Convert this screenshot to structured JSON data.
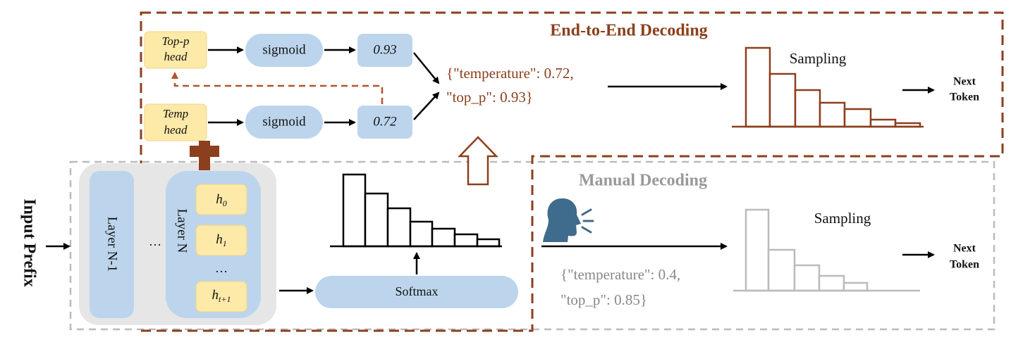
{
  "end_to_end": {
    "title": "End-to-End Decoding",
    "heads": [
      {
        "label": [
          "Top-p",
          "head"
        ],
        "activation": "sigmoid",
        "output": "0.93"
      },
      {
        "label": [
          "Temp",
          "head"
        ],
        "activation": "sigmoid",
        "output": "0.72"
      }
    ],
    "params": [
      "{\"temperature\": 0.72,",
      "\"top_p\": 0.93}"
    ],
    "sampling": "Sampling",
    "next_token": [
      "Next",
      "Token"
    ]
  },
  "model": {
    "input": "Input Prefix",
    "layer_prev": "Layer N-1",
    "layer_ellipsis": "…",
    "layer": "Layer N",
    "hidden": [
      {
        "base": "h",
        "sub": "0"
      },
      {
        "base": "h",
        "sub": "1"
      },
      {
        "base": "h",
        "sub": "t+1"
      }
    ],
    "hidden_ellipsis": "…",
    "softmax": "Softmax"
  },
  "manual": {
    "title": "Manual Decoding",
    "params": [
      "{\"temperature\": 0.4,",
      "\"top_p\": 0.85}"
    ],
    "sampling": "Sampling",
    "next_token": [
      "Next",
      "Token"
    ]
  }
}
